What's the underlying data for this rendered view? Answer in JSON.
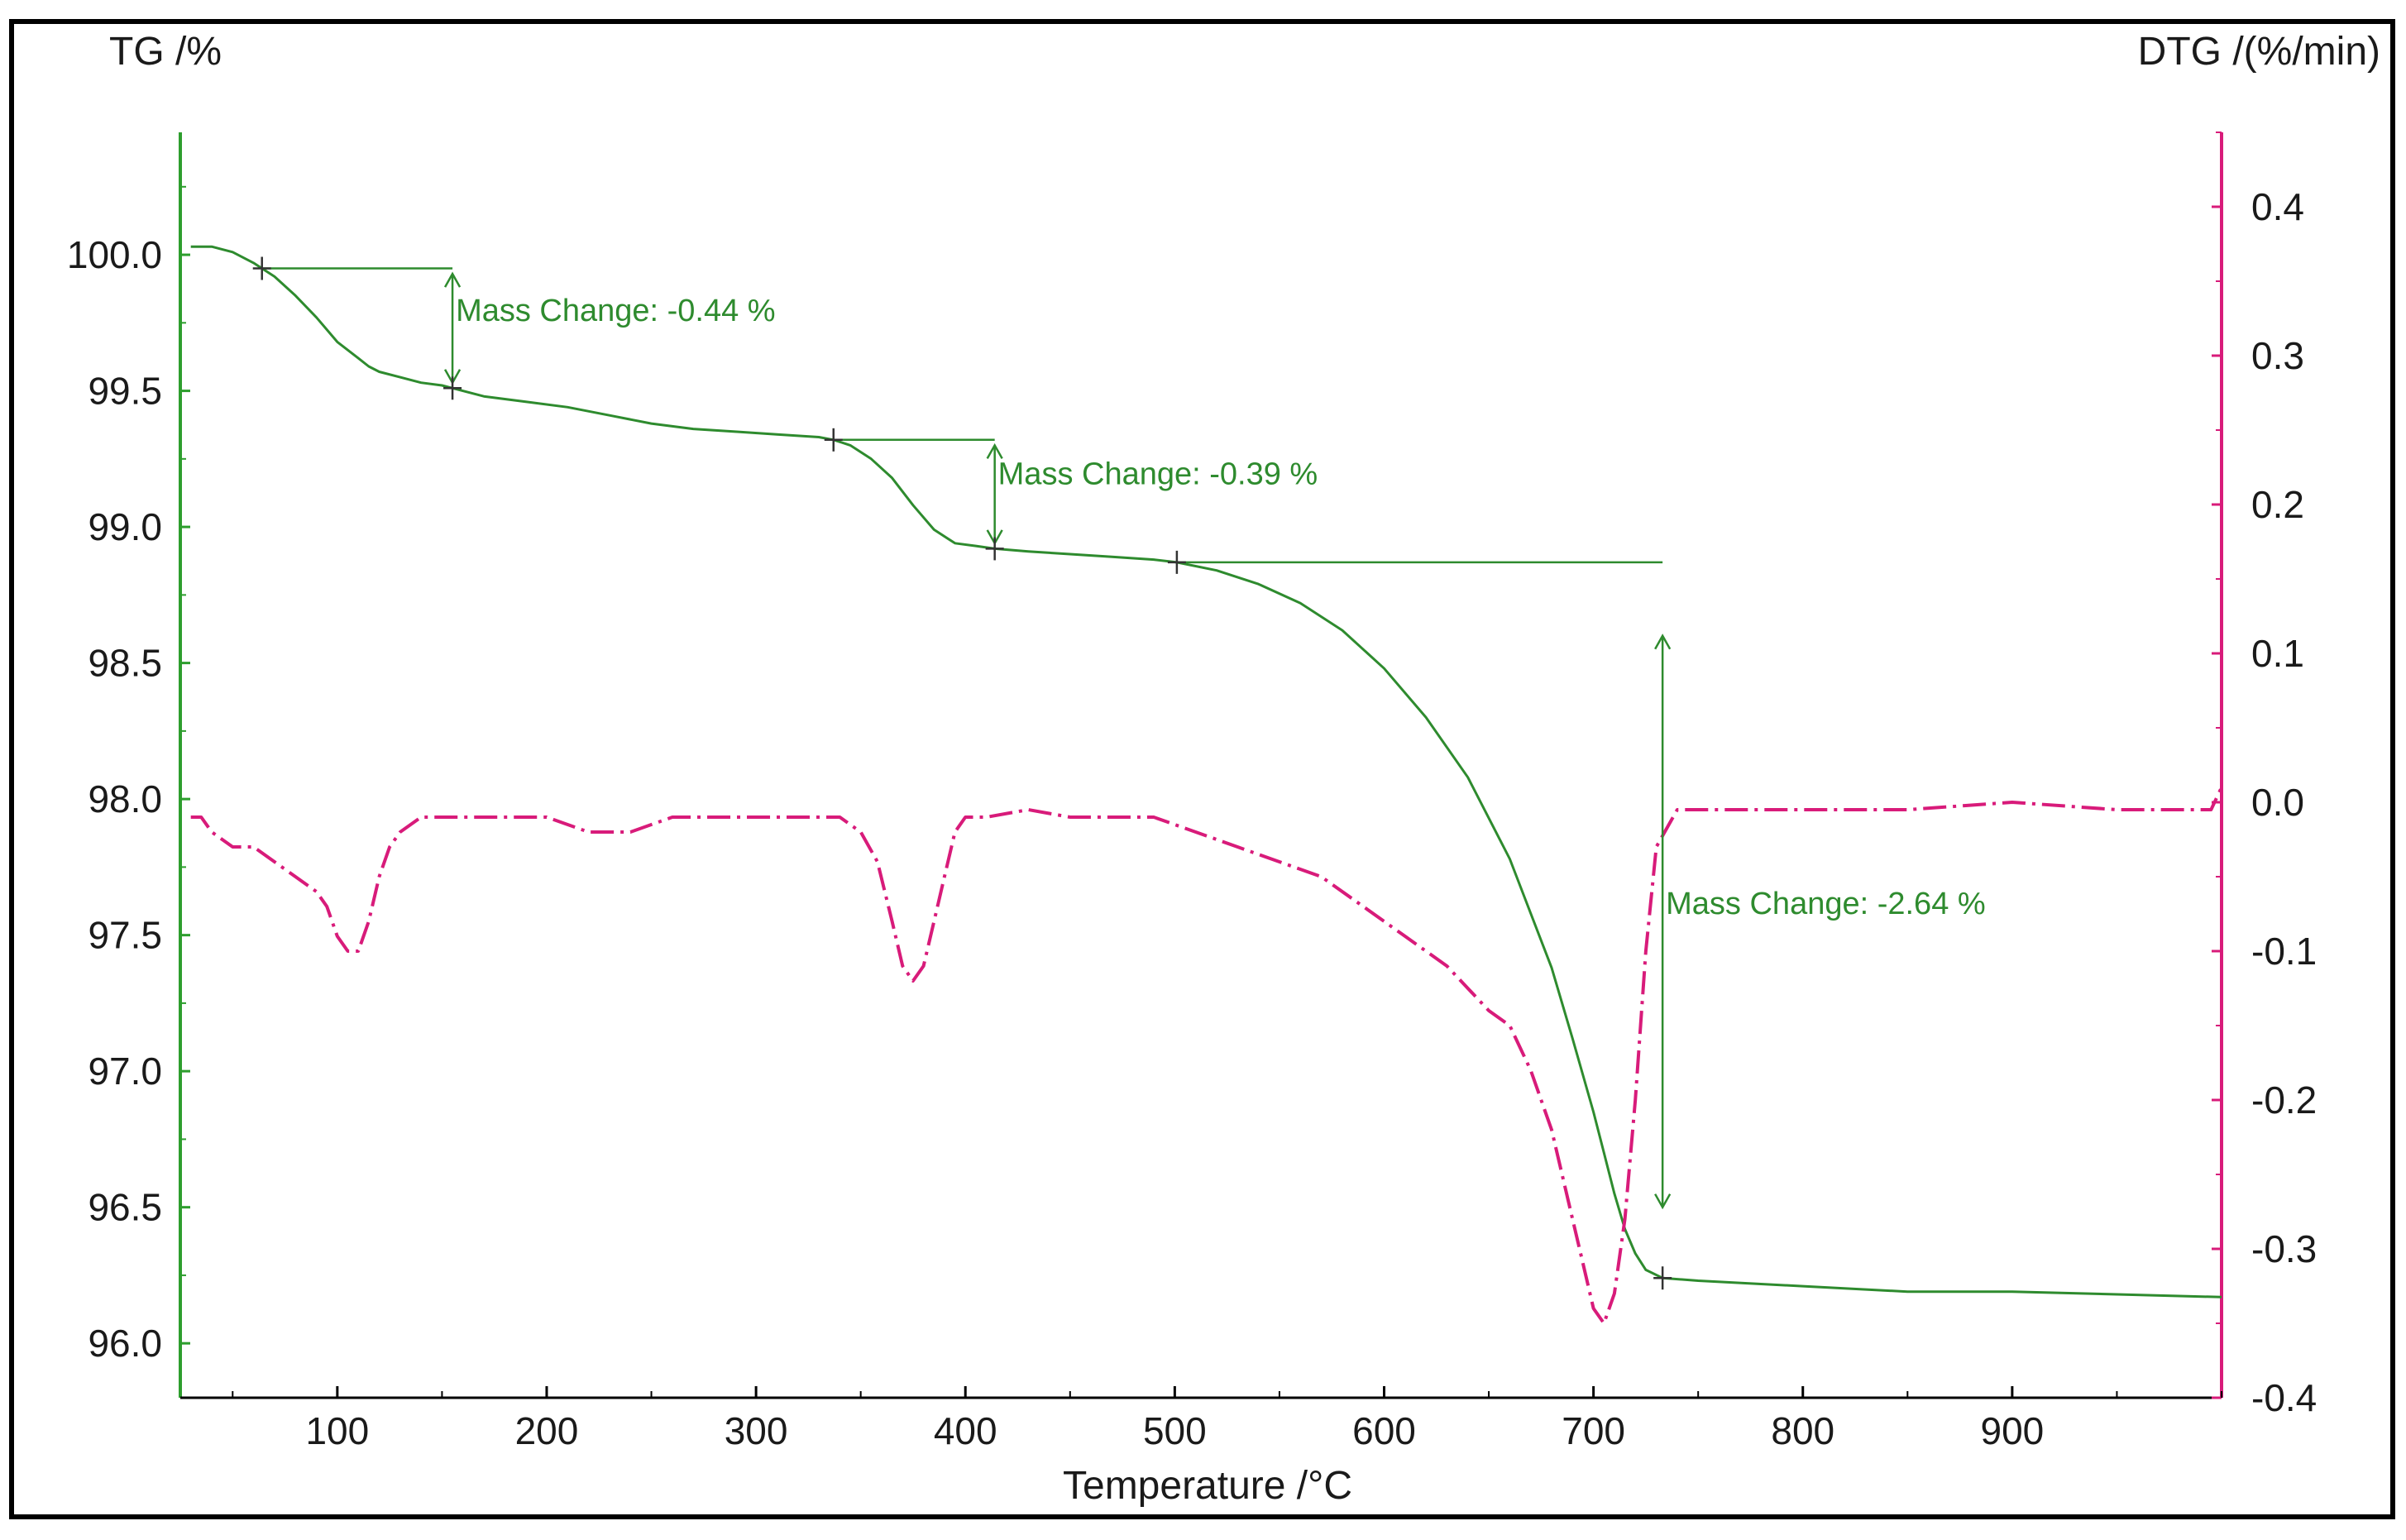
{
  "chart_data": {
    "type": "line",
    "title": "",
    "xlabel": "Temperature /°C",
    "ylabel_left": "TG /%",
    "ylabel_right": "DTG /(%/min)",
    "xlim": [
      25,
      1000
    ],
    "ylim_left": [
      95.8,
      100.45
    ],
    "ylim_right": [
      -0.4,
      0.45
    ],
    "x_ticks": [
      100,
      200,
      300,
      400,
      500,
      600,
      700,
      800,
      900
    ],
    "x_tick_labels": [
      "100",
      "200",
      "300",
      "400",
      "500",
      "600",
      "700",
      "800",
      "900"
    ],
    "y_left_ticks": [
      100.0,
      99.5,
      99.0,
      98.5,
      98.0,
      97.5,
      97.0,
      96.5,
      96.0
    ],
    "y_left_tick_labels": [
      "100.0",
      "99.5",
      "99.0",
      "98.5",
      "98.0",
      "97.5",
      "97.0",
      "96.5",
      "96.0"
    ],
    "y_right_ticks": [
      0.4,
      0.3,
      0.2,
      0.1,
      0.0,
      -0.1,
      -0.2,
      -0.3,
      -0.4
    ],
    "y_right_tick_labels": [
      "0.4",
      "0.3",
      "0.2",
      "0.1",
      "0.0",
      "-0.1",
      "-0.2",
      "-0.3",
      "-0.4"
    ],
    "colors": {
      "tg": "#2e8b2e",
      "dtg": "#d81b7a",
      "axis_left": "#2e9e2e",
      "axis_right": "#d81b7a",
      "frame": "#000000"
    },
    "series": [
      {
        "name": "TG",
        "axis": "left",
        "style": "solid",
        "x": [
          30,
          40,
          50,
          60,
          64,
          70,
          80,
          90,
          100,
          110,
          115,
          120,
          130,
          140,
          150,
          155,
          170,
          190,
          210,
          230,
          250,
          270,
          290,
          310,
          330,
          337,
          345,
          355,
          365,
          375,
          385,
          395,
          405,
          414,
          430,
          450,
          470,
          490,
          501,
          520,
          540,
          560,
          580,
          600,
          620,
          640,
          660,
          680,
          690,
          700,
          705,
          710,
          715,
          720,
          725,
          733,
          750,
          800,
          850,
          900,
          950,
          1000
        ],
        "y": [
          100.03,
          100.03,
          100.01,
          99.97,
          99.95,
          99.92,
          99.85,
          99.77,
          99.68,
          99.62,
          99.59,
          99.57,
          99.55,
          99.53,
          99.52,
          99.51,
          99.48,
          99.46,
          99.44,
          99.41,
          99.38,
          99.36,
          99.35,
          99.34,
          99.33,
          99.32,
          99.3,
          99.25,
          99.18,
          99.08,
          98.99,
          98.94,
          98.93,
          98.92,
          98.91,
          98.9,
          98.89,
          98.88,
          98.87,
          98.84,
          98.79,
          98.72,
          98.62,
          98.48,
          98.3,
          98.08,
          97.78,
          97.38,
          97.12,
          96.85,
          96.7,
          96.55,
          96.42,
          96.33,
          96.27,
          96.24,
          96.23,
          96.21,
          96.19,
          96.19,
          96.18,
          96.17
        ]
      },
      {
        "name": "DTG",
        "axis": "right",
        "style": "dash-dot",
        "x": [
          30,
          35,
          40,
          50,
          60,
          70,
          80,
          90,
          95,
          100,
          105,
          110,
          115,
          120,
          125,
          130,
          140,
          160,
          180,
          200,
          220,
          240,
          260,
          280,
          300,
          320,
          340,
          350,
          358,
          365,
          370,
          375,
          380,
          385,
          390,
          395,
          400,
          410,
          430,
          450,
          470,
          490,
          510,
          530,
          550,
          570,
          590,
          610,
          630,
          650,
          660,
          670,
          680,
          690,
          695,
          700,
          705,
          710,
          715,
          720,
          725,
          730,
          740,
          760,
          800,
          850,
          900,
          950,
          995,
          1000
        ],
        "y": [
          -0.01,
          -0.01,
          -0.02,
          -0.03,
          -0.03,
          -0.04,
          -0.05,
          -0.06,
          -0.07,
          -0.09,
          -0.1,
          -0.1,
          -0.08,
          -0.05,
          -0.03,
          -0.02,
          -0.01,
          -0.01,
          -0.01,
          -0.01,
          -0.02,
          -0.02,
          -0.01,
          -0.01,
          -0.01,
          -0.01,
          -0.01,
          -0.02,
          -0.04,
          -0.08,
          -0.11,
          -0.12,
          -0.11,
          -0.08,
          -0.05,
          -0.02,
          -0.01,
          -0.01,
          -0.005,
          -0.01,
          -0.01,
          -0.01,
          -0.02,
          -0.03,
          -0.04,
          -0.05,
          -0.07,
          -0.09,
          -0.11,
          -0.14,
          -0.15,
          -0.18,
          -0.22,
          -0.28,
          -0.31,
          -0.34,
          -0.35,
          -0.33,
          -0.28,
          -0.2,
          -0.1,
          -0.03,
          -0.005,
          -0.005,
          -0.005,
          -0.005,
          0.0,
          -0.005,
          -0.005,
          0.01
        ]
      }
    ],
    "markers": [
      {
        "x": 64,
        "y": 99.95
      },
      {
        "x": 155,
        "y": 99.51
      },
      {
        "x": 337,
        "y": 99.32
      },
      {
        "x": 414,
        "y": 98.92
      },
      {
        "x": 501,
        "y": 98.87
      },
      {
        "x": 733,
        "y": 96.24
      }
    ],
    "annotations": [
      {
        "label": "Mass Change: -0.44 %",
        "line_x_start": 64,
        "line_x_end": 155,
        "line_y": 99.95,
        "arrow_x": 155,
        "arrow_y_top": 99.93,
        "arrow_y_bottom": 99.53,
        "text_x": 155,
        "text_y": 99.8
      },
      {
        "label": "Mass Change: -0.39 %",
        "line_x_start": 337,
        "line_x_end": 414,
        "line_y": 99.32,
        "arrow_x": 414,
        "arrow_y_top": 99.3,
        "arrow_y_bottom": 98.94,
        "text_x": 414,
        "text_y": 99.2
      },
      {
        "label": "Mass Change: -2.64 %",
        "line_x_start": 501,
        "line_x_end": 733,
        "line_y": 98.87,
        "arrow_x": 733,
        "arrow_y_top": 98.6,
        "arrow_y_bottom": 96.5,
        "text_x": 733,
        "text_y": 97.62
      }
    ]
  }
}
